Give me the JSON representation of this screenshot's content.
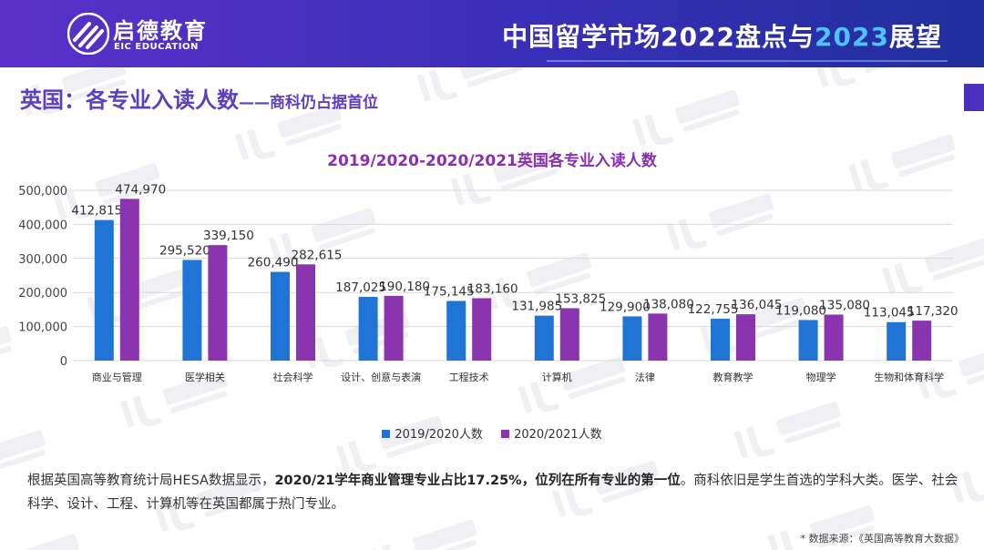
{
  "header": {
    "logo_cn": "启德教育",
    "logo_en": "EIC EDUCATION",
    "title_part1": "中国留学市场2022盘点与",
    "title_highlight": "2023",
    "title_part2": "展望"
  },
  "section": {
    "title": "英国：各专业入读人数",
    "subtitle": "——商科仍占据首位"
  },
  "colors": {
    "series1": "#1f74d6",
    "series2": "#8b34b0",
    "title": "#5b3fbf",
    "chart_title": "#8a2fb0"
  },
  "chart_data": {
    "type": "bar",
    "title": "2019/2020-2020/2021英国各专业入读人数",
    "categories": [
      "商业与管理",
      "医学相关",
      "社会科学",
      "设计、创意与表演",
      "工程技术",
      "计算机",
      "法律",
      "教育教学",
      "物理学",
      "生物和体育科学"
    ],
    "series": [
      {
        "name": "2019/2020人数",
        "values": [
          412815,
          295520,
          260490,
          187025,
          175145,
          131985,
          129900,
          122755,
          119080,
          113045
        ]
      },
      {
        "name": "2020/2021人数",
        "values": [
          474970,
          339150,
          282615,
          190180,
          183160,
          153825,
          138080,
          136045,
          135080,
          117320
        ]
      }
    ],
    "data_labels": [
      [
        "412,815",
        "295,520",
        "260,490",
        "187,025",
        "175,145",
        "131,985",
        "129,900",
        "122,755",
        "119,080",
        "113,045"
      ],
      [
        "474,970",
        "339,150",
        "282,615",
        "190,180",
        "183,160",
        "153,825",
        "138,080",
        "136,045",
        "135,080",
        "117,320"
      ]
    ],
    "ylim": [
      0,
      500000
    ],
    "yticks": [
      0,
      100000,
      200000,
      300000,
      400000,
      500000
    ],
    "ytick_labels": [
      "0",
      "100,000",
      "200,000",
      "300,000",
      "400,000",
      "500,000"
    ],
    "grid": true,
    "legend": "bottom"
  },
  "body": {
    "text_start": "根据英国高等教育统计局HESA数据显示，",
    "text_bold": "2020/21学年商业管理专业占比17.25%，位列在所有专业的第一位",
    "text_end": "。商科依旧是学生首选的学科大类。医学、社会科学、设计、工程、计算机等在英国都属于热门专业。"
  },
  "source": "* 数据来源：《英国高等教育大数据》"
}
